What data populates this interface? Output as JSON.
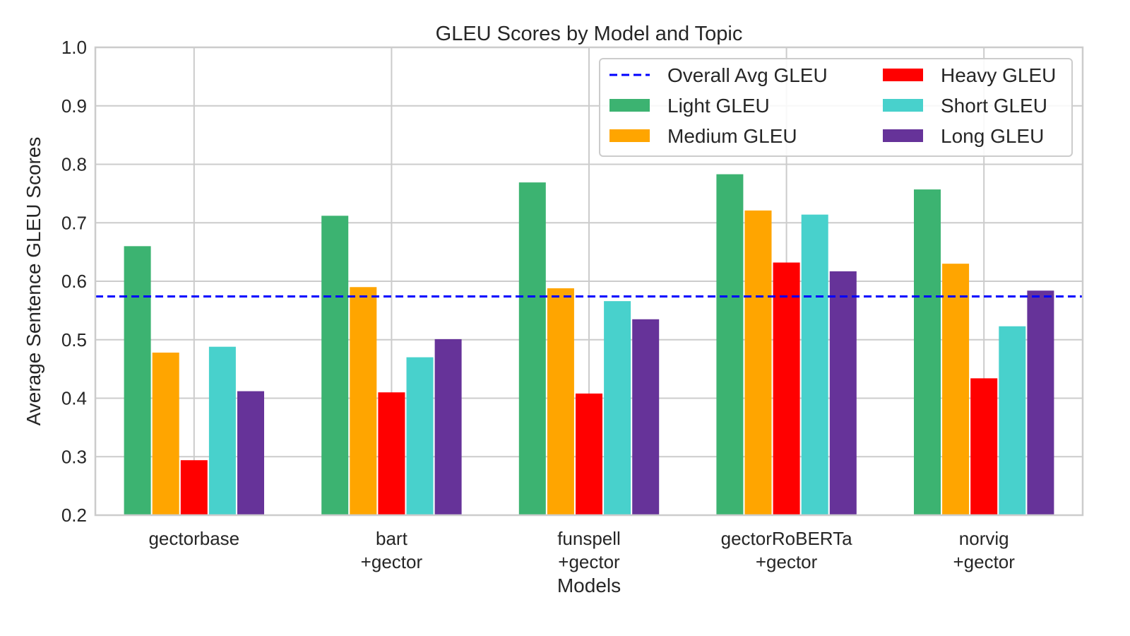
{
  "chart_data": {
    "type": "bar",
    "title": "GLEU Scores by Model and Topic",
    "xlabel": "Models",
    "ylabel": "Average Sentence GLEU Scores",
    "ylim": [
      0.2,
      1.0
    ],
    "yticks": [
      "0.2",
      "0.3",
      "0.4",
      "0.5",
      "0.6",
      "0.7",
      "0.8",
      "0.9",
      "1.0"
    ],
    "grid": true,
    "legend_position": "top-right",
    "categories": [
      [
        "gectorbase"
      ],
      [
        "bart",
        "+gector"
      ],
      [
        "funspell",
        "+gector"
      ],
      [
        "gectorRoBERTa",
        "+gector"
      ],
      [
        "norvig",
        "+gector"
      ]
    ],
    "series": [
      {
        "name": "Light GLEU",
        "color": "#3cb371",
        "values": [
          0.66,
          0.712,
          0.769,
          0.783,
          0.757
        ]
      },
      {
        "name": "Medium GLEU",
        "color": "#ffa500",
        "values": [
          0.478,
          0.59,
          0.588,
          0.721,
          0.63
        ]
      },
      {
        "name": "Heavy GLEU",
        "color": "#ff0000",
        "values": [
          0.294,
          0.41,
          0.408,
          0.632,
          0.434
        ]
      },
      {
        "name": "Short GLEU",
        "color": "#48d1cc",
        "values": [
          0.488,
          0.47,
          0.566,
          0.714,
          0.523
        ]
      },
      {
        "name": "Long GLEU",
        "color": "#663399",
        "values": [
          0.412,
          0.501,
          0.535,
          0.617,
          0.584
        ]
      }
    ],
    "reference_line": {
      "name": "Overall Avg GLEU",
      "value": 0.574,
      "color": "#0000ff",
      "style": "dashed"
    }
  }
}
